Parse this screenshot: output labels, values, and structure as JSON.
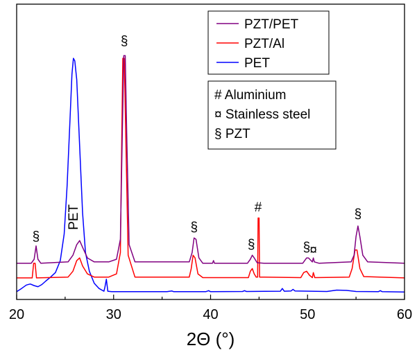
{
  "chart_data": {
    "type": "line",
    "xlabel": "2Θ (°)",
    "ylabel": "",
    "xlim": [
      20,
      60
    ],
    "y_units": "arbitrary intensity",
    "ylim": [
      0,
      100
    ],
    "x_ticks": [
      20,
      30,
      40,
      50,
      60
    ],
    "x_tick_labels": [
      "20",
      "30",
      "40",
      "50",
      "60"
    ],
    "grid": false,
    "legend_position": "top-right",
    "series": [
      {
        "name": "PZT/PET",
        "color": "#800080",
        "points": [
          [
            20,
            11
          ],
          [
            21.5,
            11
          ],
          [
            21.8,
            12.5
          ],
          [
            22.0,
            17.5
          ],
          [
            22.2,
            12.5
          ],
          [
            22.5,
            11
          ],
          [
            25.3,
            11.5
          ],
          [
            25.8,
            14
          ],
          [
            26.2,
            18
          ],
          [
            26.5,
            19.5
          ],
          [
            26.8,
            17
          ],
          [
            27.3,
            13
          ],
          [
            28,
            11.5
          ],
          [
            29.5,
            11.5
          ],
          [
            30.3,
            12.5
          ],
          [
            30.7,
            20
          ],
          [
            30.9,
            60
          ],
          [
            31.05,
            89
          ],
          [
            31.2,
            89
          ],
          [
            31.35,
            60
          ],
          [
            31.6,
            18
          ],
          [
            32.2,
            11.5
          ],
          [
            37.8,
            11.5
          ],
          [
            38.1,
            15
          ],
          [
            38.3,
            20.5
          ],
          [
            38.5,
            20
          ],
          [
            38.8,
            13
          ],
          [
            39.2,
            11
          ],
          [
            40.2,
            11
          ],
          [
            40.3,
            12
          ],
          [
            40.4,
            11
          ],
          [
            43.8,
            11
          ],
          [
            44.1,
            12.5
          ],
          [
            44.3,
            14
          ],
          [
            44.5,
            13
          ],
          [
            44.8,
            11.2
          ],
          [
            45.5,
            11
          ],
          [
            49.5,
            11
          ],
          [
            49.9,
            13
          ],
          [
            50.1,
            13
          ],
          [
            50.5,
            11.5
          ],
          [
            50.6,
            13
          ],
          [
            50.7,
            11.5
          ],
          [
            51.2,
            11
          ],
          [
            54.5,
            11.5
          ],
          [
            54.8,
            14
          ],
          [
            55.0,
            21
          ],
          [
            55.2,
            25
          ],
          [
            55.4,
            21
          ],
          [
            55.7,
            14
          ],
          [
            56.2,
            11.5
          ],
          [
            60,
            11
          ]
        ]
      },
      {
        "name": "PZT/Al",
        "color": "#ff0000",
        "points": [
          [
            20,
            5.5
          ],
          [
            21.6,
            5.5
          ],
          [
            21.75,
            11
          ],
          [
            21.9,
            11
          ],
          [
            22.05,
            5.5
          ],
          [
            25.3,
            5.8
          ],
          [
            25.8,
            8
          ],
          [
            26.2,
            12
          ],
          [
            26.5,
            13
          ],
          [
            26.8,
            10
          ],
          [
            27.3,
            7
          ],
          [
            28,
            5.8
          ],
          [
            29.5,
            5.8
          ],
          [
            30.3,
            7
          ],
          [
            30.7,
            15
          ],
          [
            30.85,
            60
          ],
          [
            30.95,
            88
          ],
          [
            31.1,
            88
          ],
          [
            31.25,
            60
          ],
          [
            31.5,
            14
          ],
          [
            32.2,
            5.8
          ],
          [
            37.8,
            5.8
          ],
          [
            38.0,
            9
          ],
          [
            38.2,
            14
          ],
          [
            38.4,
            13
          ],
          [
            38.7,
            7
          ],
          [
            39.2,
            5.6
          ],
          [
            43.9,
            5.6
          ],
          [
            44.1,
            8
          ],
          [
            44.3,
            9
          ],
          [
            44.5,
            7
          ],
          [
            44.7,
            5.8
          ],
          [
            44.85,
            5.8
          ],
          [
            44.9,
            28
          ],
          [
            45.0,
            28
          ],
          [
            45.05,
            5.8
          ],
          [
            49.3,
            5.6
          ],
          [
            49.6,
            7.5
          ],
          [
            49.9,
            8
          ],
          [
            50.2,
            6.5
          ],
          [
            50.5,
            5.6
          ],
          [
            50.6,
            7.5
          ],
          [
            50.75,
            5.6
          ],
          [
            54.3,
            5.8
          ],
          [
            54.6,
            9
          ],
          [
            54.9,
            16
          ],
          [
            55.1,
            16
          ],
          [
            55.4,
            9
          ],
          [
            55.8,
            6
          ],
          [
            60,
            5.5
          ]
        ]
      },
      {
        "name": "PET",
        "color": "#0000ff",
        "points": [
          [
            20,
            0.3
          ],
          [
            20.5,
            1.5
          ],
          [
            21.0,
            2.8
          ],
          [
            21.4,
            3.2
          ],
          [
            21.8,
            2.6
          ],
          [
            22.2,
            2.2
          ],
          [
            22.6,
            3.0
          ],
          [
            23.0,
            4.3
          ],
          [
            23.5,
            5.8
          ],
          [
            24.0,
            7.5
          ],
          [
            24.5,
            12
          ],
          [
            24.9,
            22
          ],
          [
            25.2,
            40
          ],
          [
            25.5,
            65
          ],
          [
            25.7,
            82
          ],
          [
            25.85,
            88
          ],
          [
            26.0,
            87
          ],
          [
            26.2,
            80
          ],
          [
            26.5,
            55
          ],
          [
            26.8,
            30
          ],
          [
            27.1,
            15
          ],
          [
            27.5,
            8
          ],
          [
            28.0,
            3.5
          ],
          [
            28.5,
            1.5
          ],
          [
            29.0,
            0.5
          ],
          [
            29.1,
            2
          ],
          [
            29.25,
            5
          ],
          [
            29.4,
            0.5
          ],
          [
            29.8,
            0.3
          ],
          [
            35.5,
            0.3
          ],
          [
            36,
            0.6
          ],
          [
            36.2,
            0.3
          ],
          [
            39.5,
            0.3
          ],
          [
            39.8,
            0.7
          ],
          [
            40.0,
            0.3
          ],
          [
            43.3,
            0.4
          ],
          [
            43.5,
            0.7
          ],
          [
            43.7,
            0.4
          ],
          [
            47.2,
            0.5
          ],
          [
            47.4,
            1.5
          ],
          [
            47.6,
            0.5
          ],
          [
            48.3,
            0.6
          ],
          [
            48.5,
            1.2
          ],
          [
            48.7,
            0.6
          ],
          [
            52,
            0.4
          ],
          [
            53.0,
            0.9
          ],
          [
            54.0,
            0.8
          ],
          [
            55.0,
            0.4
          ],
          [
            57.3,
            0.3
          ],
          [
            57.5,
            0.7
          ],
          [
            57.7,
            0.3
          ],
          [
            60,
            0.2
          ]
        ]
      }
    ],
    "legend": [
      {
        "label": "PZT/PET",
        "color": "#800080"
      },
      {
        "label": "PZT/Al",
        "color": "#ff0000"
      },
      {
        "label": "PET",
        "color": "#0000ff"
      }
    ],
    "notes": [
      "# Aluminium",
      "¤ Stainless steel",
      "§ PZT"
    ],
    "peak_annotations": [
      {
        "text": "§",
        "x": 22.0,
        "y": 19.5
      },
      {
        "text": "PET",
        "x": 26.3,
        "y": 23.5,
        "rotate": true
      },
      {
        "text": "§",
        "x": 31.1,
        "y": 93
      },
      {
        "text": "§",
        "x": 38.3,
        "y": 23
      },
      {
        "text": "§",
        "x": 44.2,
        "y": 16.5
      },
      {
        "text": "#",
        "x": 44.9,
        "y": 30.5
      },
      {
        "text": "§",
        "x": 49.9,
        "y": 15.5
      },
      {
        "text": "¤",
        "x": 50.6,
        "y": 14.5
      },
      {
        "text": "§",
        "x": 55.2,
        "y": 28
      }
    ]
  }
}
